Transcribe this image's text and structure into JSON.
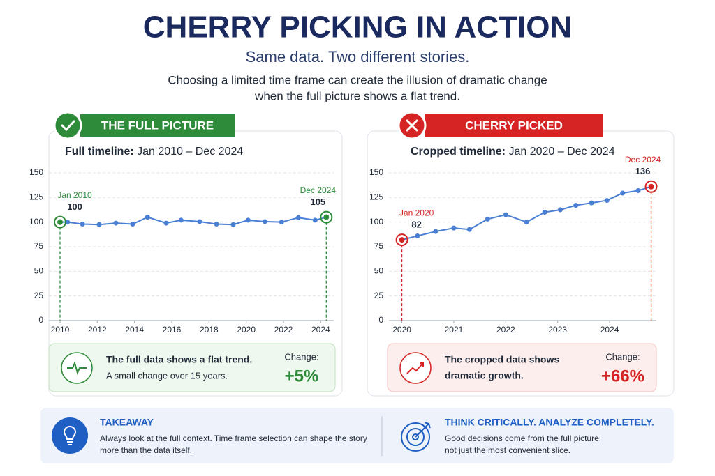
{
  "header": {
    "title": "CHERRY PICKING IN ACTION",
    "subtitle": "Same data. Two different stories.",
    "description": [
      "Choosing a limited time frame can create the illusion of dramatic change",
      "when the full picture shows a flat trend."
    ]
  },
  "chart_data": [
    {
      "type": "line",
      "badge": "THE FULL PICTURE",
      "subtitle_label": "Full timeline:",
      "subtitle": "Jan 2010 – Dec 2024",
      "annotations": [
        "Jan 2010",
        "Dec 2024"
      ],
      "color": "#4a7fd4",
      "accent": "#2e8b3a",
      "grid": true,
      "x": [
        2010,
        2010.4,
        2011.2,
        2012.1,
        2013,
        2013.9,
        2014.7,
        2015.7,
        2016.5,
        2017.5,
        2018.4,
        2019.3,
        2020.1,
        2021,
        2021.9,
        2022.8,
        2023.7,
        2024.3
      ],
      "values": [
        100,
        100,
        98,
        97.5,
        99,
        98,
        105,
        99,
        102,
        100.5,
        98,
        97.5,
        102,
        100.5,
        100,
        104.5,
        102,
        105
      ],
      "xlim": [
        2009.4,
        2024.7
      ],
      "ylim": [
        0,
        150
      ],
      "xticks": [
        2010,
        2012,
        2014,
        2016,
        2018,
        2020,
        2022,
        2024
      ],
      "yticks": [
        0,
        25,
        50,
        75,
        100,
        125,
        150
      ],
      "summary": {
        "headline": [
          "The full data shows a flat trend."
        ],
        "detail": [
          "A small change over 15 years."
        ],
        "change_label": "Change:",
        "change": "+5%"
      }
    },
    {
      "type": "line",
      "badge": "CHERRY PICKED",
      "subtitle_label": "Cropped timeline:",
      "subtitle": "Jan 2020 – Dec 2024",
      "annotations": [
        "Jan 2020",
        "Dec 2024"
      ],
      "color": "#4a7fd4",
      "accent": "#d62424",
      "grid": true,
      "x": [
        2020,
        2020.3,
        2020.65,
        2021,
        2021.3,
        2021.65,
        2022,
        2022.4,
        2022.75,
        2023.05,
        2023.35,
        2023.65,
        2023.95,
        2024.25,
        2024.55,
        2024.8
      ],
      "values": [
        82,
        86,
        90.5,
        94,
        92.5,
        103,
        107.5,
        100,
        110,
        112.5,
        117,
        119.5,
        122,
        129.5,
        132,
        136
      ],
      "xlim": [
        2019.75,
        2024.9
      ],
      "ylim": [
        0,
        150
      ],
      "xticks": [
        2020,
        2021,
        2022,
        2023,
        2024
      ],
      "yticks": [
        0,
        25,
        50,
        75,
        100,
        125,
        150
      ],
      "summary": {
        "headline": [
          "The cropped data shows",
          "dramatic growth."
        ],
        "change_label": "Change:",
        "change": "+66%"
      }
    }
  ],
  "takeaway": {
    "title": "TAKEAWAY",
    "lines": [
      "Always look at the full context. Time frame selection can shape the story",
      "more than the data itself."
    ]
  },
  "advice": {
    "title": "THINK CRITICALLY. ANALYZE COMPLETELY.",
    "lines": [
      "Good decisions come from the full picture,",
      "not just the most convenient slice."
    ]
  }
}
